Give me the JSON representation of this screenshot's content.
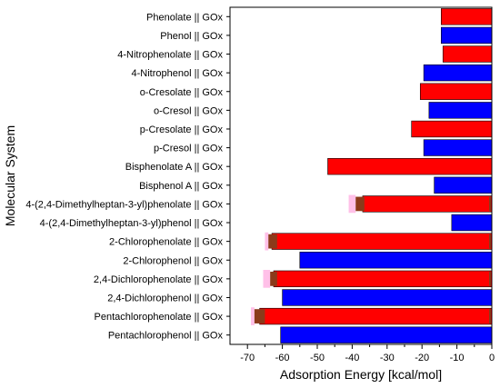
{
  "chart_data": {
    "type": "bar",
    "orientation": "horizontal",
    "xlabel": "Adsorption Energy [kcal/mol]",
    "ylabel": "Molecular System",
    "xlim": [
      -75,
      0
    ],
    "xticks": [
      -70,
      -60,
      -50,
      -40,
      -30,
      -20,
      -10,
      0
    ],
    "xtick_labels": [
      "-70",
      "-60",
      "-50",
      "-40",
      "-30",
      "-20",
      "-10",
      "0"
    ],
    "grid": false,
    "legend": "none",
    "colors": {
      "anion": "#ff0000",
      "neutral": "#0000ff",
      "overlay": "#8b3a1a",
      "halo": "#ffc0e8"
    },
    "categories": [
      "Phenolate || GOx",
      "Phenol || GOx",
      "4-Nitrophenolate || GOx",
      "4-Nitrophenol || GOx",
      "o-Cresolate || GOx",
      "o-Cresol || GOx",
      "p-Cresolate || GOx",
      "p-Cresol || GOx",
      "Bisphenolate A || GOx",
      "Bisphenol A || GOx",
      "4-(2,4-Dimethylheptan-3-yl)phenolate || GOx",
      "4-(2,4-Dimethylheptan-3-yl)phenol || GOx",
      "2-Chlorophenolate || GOx",
      "2-Chlorophenol || GOx",
      "2,4-Dichlorophenolate || GOx",
      "2,4-Dichlorophenol || GOx",
      "Pentachlorophenolate || GOx",
      "Pentachlorophenol || GOx"
    ],
    "values": [
      -14.5,
      -14.5,
      -14,
      -19.5,
      -20.5,
      -18,
      -23,
      -19.5,
      -47,
      -16.5,
      -37,
      -11.5,
      -63,
      -55,
      -62.5,
      -60,
      -66.5,
      -60.5
    ],
    "kinds": [
      "anion",
      "neutral",
      "anion",
      "neutral",
      "anion",
      "neutral",
      "anion",
      "neutral",
      "anion",
      "neutral",
      "anion",
      "neutral",
      "anion",
      "neutral",
      "anion",
      "neutral",
      "anion",
      "neutral"
    ],
    "overlay": [
      null,
      null,
      null,
      null,
      null,
      null,
      null,
      null,
      null,
      null,
      {
        "range": [
          -39,
          -36.5
        ],
        "halo": [
          -41,
          -39
        ]
      },
      null,
      {
        "range": [
          -64,
          -61.5
        ],
        "halo": [
          -65,
          -64
        ]
      },
      null,
      {
        "range": [
          -63.5,
          -61.5
        ],
        "halo": [
          -65.5,
          -63.5
        ]
      },
      null,
      {
        "range": [
          -68,
          -65
        ],
        "halo": [
          -69,
          -68
        ]
      },
      null
    ]
  }
}
